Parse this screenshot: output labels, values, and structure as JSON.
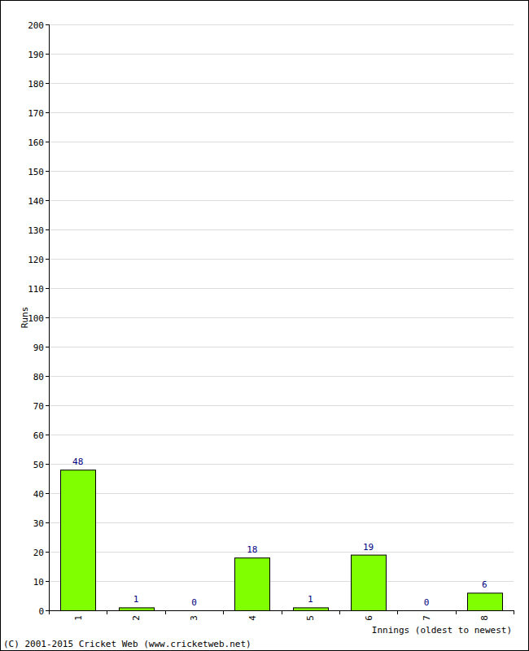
{
  "chart_data": {
    "type": "bar",
    "categories": [
      "1",
      "2",
      "3",
      "4",
      "5",
      "6",
      "7",
      "8"
    ],
    "values": [
      48,
      1,
      0,
      18,
      1,
      19,
      0,
      6
    ],
    "color": "#80ff00",
    "x_label": "Innings (oldest to newest)",
    "y_label": "Runs",
    "annotations": [
      "(C) 2001-2015 Cricket Web (www.cricketweb.net)"
    ],
    "ylim": [
      0,
      200
    ],
    "yticks": [
      0,
      10,
      20,
      30,
      40,
      50,
      60,
      70,
      80,
      90,
      100,
      110,
      120,
      130,
      140,
      150,
      160,
      170,
      180,
      190,
      200
    ],
    "grid": true,
    "data_labels": true
  }
}
